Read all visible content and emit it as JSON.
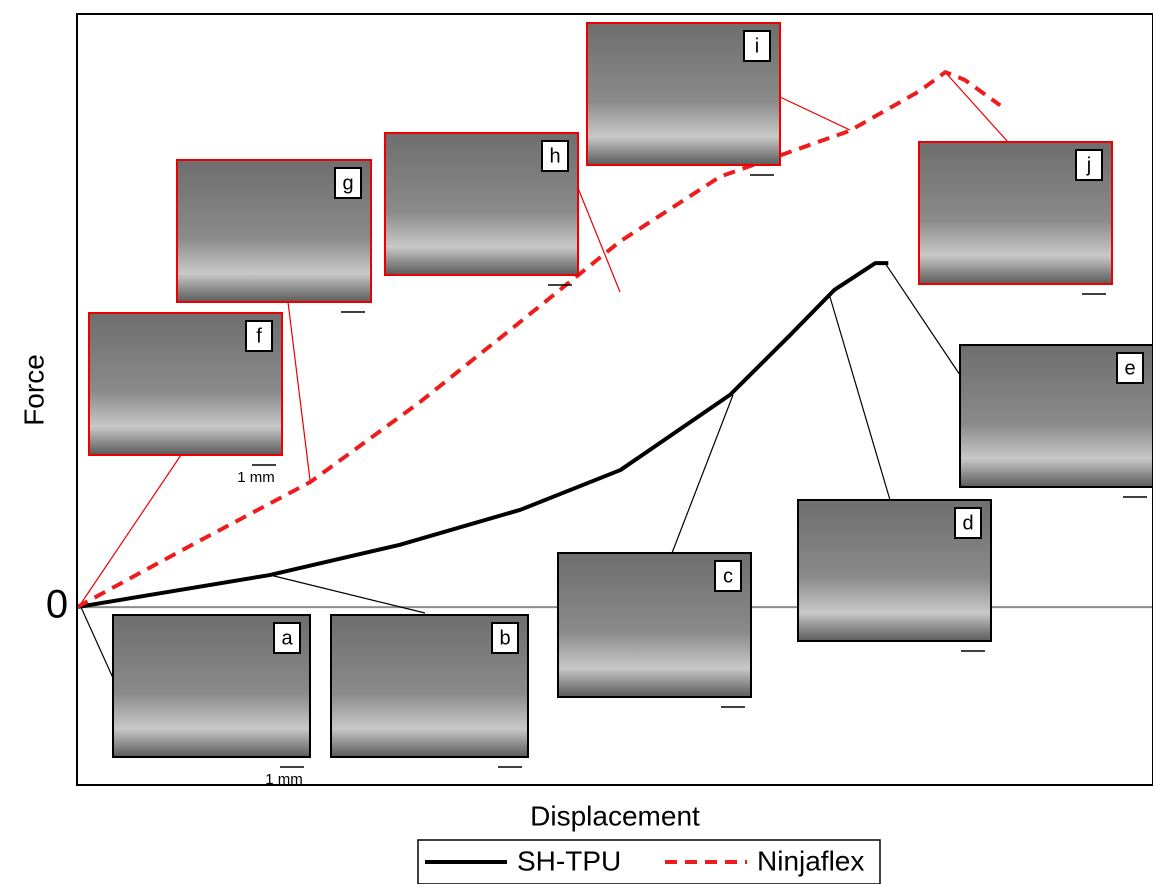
{
  "chart_data": {
    "type": "line",
    "x_label": "Displacement",
    "y_label": "Force",
    "xlim": [
      0,
      100
    ],
    "ylim": [
      -30,
      100
    ],
    "yticks": [
      0
    ],
    "series": [
      {
        "name": "SH-TPU",
        "color": "#000000",
        "dash": false,
        "x": [
          0,
          17.9,
          30.0,
          41.2,
          50.5,
          60.7,
          66.3,
          70.4,
          74.2,
          75.4
        ],
        "values": [
          0,
          5.4,
          10.5,
          16.4,
          23.1,
          35.8,
          45.9,
          53.5,
          58.0,
          58.0
        ]
      },
      {
        "name": "Ninjaflex",
        "color": "#ee1c1c",
        "dash": true,
        "x": [
          0,
          11.2,
          21.7,
          31.9,
          41.2,
          50.5,
          59.8,
          71.8,
          78.3,
          80.7,
          82.5,
          85.8
        ],
        "values": [
          0,
          11.0,
          21.1,
          34.6,
          48.1,
          61.7,
          72.6,
          80.3,
          87.0,
          90.2,
          88.9,
          84.6
        ]
      }
    ],
    "insets": [
      {
        "label": "a",
        "scale_label": "1 mm"
      },
      {
        "label": "b"
      },
      {
        "label": "c"
      },
      {
        "label": "d"
      },
      {
        "label": "e"
      },
      {
        "label": "f",
        "scale_label": "1 mm"
      },
      {
        "label": "g"
      },
      {
        "label": "h"
      },
      {
        "label": "i"
      },
      {
        "label": "j"
      }
    ]
  }
}
